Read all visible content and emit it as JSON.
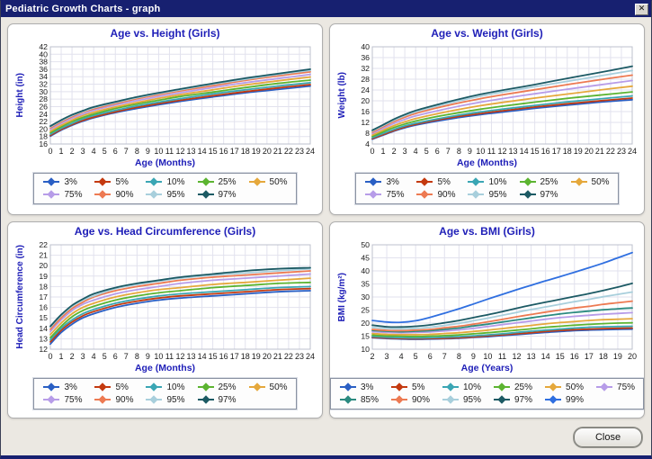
{
  "window": {
    "title": "Pediatric Growth Charts - graph",
    "close_glyph": "✕"
  },
  "footer": {
    "close_label": "Close"
  },
  "theme": {
    "title_bar_color": "#172070",
    "heading_color": "#2020b8",
    "gridline_color": "#e2e2ee",
    "plot_border_color": "#bcc0cc"
  },
  "chart_data": [
    {
      "id": "height",
      "type": "line",
      "title": "Age vs. Height (Girls)",
      "xlabel": "Age (Months)",
      "ylabel": "Height (in)",
      "xlim": [
        0,
        24
      ],
      "xstep": 1,
      "ylim": [
        16,
        42
      ],
      "ystep": 2,
      "grid": true,
      "legend_position": "bottom",
      "legend_per_row": 5,
      "x": [
        0,
        1,
        2,
        3,
        4,
        6,
        8,
        10,
        12,
        15,
        18,
        21,
        24
      ],
      "series": [
        {
          "name": "3%",
          "color": "#2a5fc4",
          "values": [
            18.1,
            19.7,
            21.0,
            22.1,
            23.0,
            24.4,
            25.5,
            26.5,
            27.4,
            28.6,
            29.7,
            30.6,
            31.5
          ]
        },
        {
          "name": "5%",
          "color": "#c43a10",
          "values": [
            18.3,
            19.9,
            21.2,
            22.3,
            23.2,
            24.6,
            25.8,
            26.8,
            27.7,
            28.9,
            30.0,
            31.0,
            31.9
          ]
        },
        {
          "name": "10%",
          "color": "#3ba6b4",
          "values": [
            18.6,
            20.2,
            21.5,
            22.7,
            23.6,
            25.0,
            26.2,
            27.2,
            28.1,
            29.4,
            30.5,
            31.5,
            32.4
          ]
        },
        {
          "name": "25%",
          "color": "#5cb431",
          "values": [
            19.0,
            20.6,
            22.0,
            23.1,
            24.0,
            25.5,
            26.7,
            27.7,
            28.7,
            29.9,
            31.1,
            32.2,
            33.1
          ]
        },
        {
          "name": "50%",
          "color": "#e5a83c",
          "values": [
            19.4,
            21.0,
            22.4,
            23.6,
            24.5,
            25.9,
            27.1,
            28.2,
            29.2,
            30.5,
            31.8,
            32.9,
            33.9
          ]
        },
        {
          "name": "75%",
          "color": "#b79ce8",
          "values": [
            19.9,
            21.5,
            22.9,
            24.0,
            25.0,
            26.4,
            27.6,
            28.7,
            29.7,
            31.1,
            32.4,
            33.5,
            34.6
          ]
        },
        {
          "name": "90%",
          "color": "#ed7a52",
          "values": [
            20.3,
            21.9,
            23.3,
            24.5,
            25.4,
            26.8,
            28.1,
            29.2,
            30.2,
            31.6,
            33.0,
            34.2,
            35.3
          ]
        },
        {
          "name": "95%",
          "color": "#a8cfdc",
          "values": [
            20.6,
            22.2,
            23.6,
            24.7,
            25.7,
            27.1,
            28.4,
            29.5,
            30.5,
            32.0,
            33.3,
            34.6,
            35.7
          ]
        },
        {
          "name": "97%",
          "color": "#1c5a64",
          "values": [
            20.8,
            22.4,
            23.8,
            24.9,
            25.9,
            27.3,
            28.6,
            29.7,
            30.7,
            32.2,
            33.6,
            34.8,
            36.0
          ]
        }
      ]
    },
    {
      "id": "weight",
      "type": "line",
      "title": "Age vs. Weight (Girls)",
      "xlabel": "Age (Months)",
      "ylabel": "Weight (lb)",
      "xlim": [
        0,
        24
      ],
      "xstep": 1,
      "ylim": [
        4,
        40
      ],
      "ystep": 4,
      "grid": true,
      "legend_position": "bottom",
      "legend_per_row": 5,
      "x": [
        0,
        1,
        2,
        3,
        4,
        6,
        8,
        10,
        12,
        15,
        18,
        21,
        24
      ],
      "series": [
        {
          "name": "3%",
          "color": "#2a5fc4",
          "values": [
            5.8,
            7.3,
            8.8,
            10.0,
            11.0,
            12.5,
            13.8,
            14.9,
            15.8,
            17.2,
            18.4,
            19.5,
            20.4
          ]
        },
        {
          "name": "5%",
          "color": "#c43a10",
          "values": [
            6.0,
            7.5,
            9.0,
            10.3,
            11.3,
            12.9,
            14.2,
            15.3,
            16.3,
            17.7,
            18.9,
            20.0,
            21.0
          ]
        },
        {
          "name": "10%",
          "color": "#3ba6b4",
          "values": [
            6.3,
            7.9,
            9.4,
            10.7,
            11.7,
            13.3,
            14.7,
            15.9,
            16.9,
            18.3,
            19.6,
            20.7,
            21.8
          ]
        },
        {
          "name": "25%",
          "color": "#5cb431",
          "values": [
            6.8,
            8.5,
            10.1,
            11.4,
            12.5,
            14.2,
            15.6,
            16.9,
            18.0,
            19.5,
            20.9,
            22.1,
            23.3
          ]
        },
        {
          "name": "50%",
          "color": "#e5a83c",
          "values": [
            7.3,
            9.1,
            10.8,
            12.2,
            13.4,
            15.2,
            16.8,
            18.2,
            19.4,
            21.0,
            22.5,
            24.0,
            25.4
          ]
        },
        {
          "name": "75%",
          "color": "#b79ce8",
          "values": [
            7.9,
            9.8,
            11.6,
            13.1,
            14.4,
            16.3,
            18.0,
            19.5,
            20.8,
            22.6,
            24.3,
            25.9,
            27.5
          ]
        },
        {
          "name": "90%",
          "color": "#ed7a52",
          "values": [
            8.4,
            10.4,
            12.3,
            13.9,
            15.3,
            17.4,
            19.2,
            20.8,
            22.2,
            24.1,
            26.0,
            27.8,
            29.5
          ]
        },
        {
          "name": "95%",
          "color": "#a8cfdc",
          "values": [
            8.8,
            10.8,
            12.8,
            14.5,
            15.9,
            18.1,
            20.0,
            21.7,
            23.2,
            25.2,
            27.2,
            29.2,
            31.2
          ]
        },
        {
          "name": "97%",
          "color": "#1c5a64",
          "values": [
            9.1,
            11.1,
            13.2,
            14.9,
            16.4,
            18.6,
            20.6,
            22.4,
            23.9,
            26.0,
            28.3,
            30.5,
            32.8
          ]
        }
      ]
    },
    {
      "id": "head-circumference",
      "type": "line",
      "title": "Age vs. Head Circumference (Girls)",
      "xlabel": "Age (Months)",
      "ylabel": "Head Circumference (in)",
      "xlim": [
        0,
        24
      ],
      "xstep": 1,
      "ylim": [
        12,
        22
      ],
      "ystep": 1,
      "grid": true,
      "legend_position": "bottom",
      "legend_per_row": 5,
      "x": [
        0,
        1,
        2,
        3,
        4,
        6,
        8,
        10,
        12,
        15,
        18,
        21,
        24
      ],
      "series": [
        {
          "name": "3%",
          "color": "#2a5fc4",
          "values": [
            12.5,
            13.6,
            14.4,
            15.0,
            15.4,
            16.0,
            16.4,
            16.7,
            16.9,
            17.1,
            17.3,
            17.5,
            17.6
          ]
        },
        {
          "name": "5%",
          "color": "#c43a10",
          "values": [
            12.7,
            13.8,
            14.6,
            15.2,
            15.6,
            16.2,
            16.6,
            16.9,
            17.1,
            17.3,
            17.5,
            17.7,
            17.8
          ]
        },
        {
          "name": "10%",
          "color": "#3ba6b4",
          "values": [
            12.9,
            14.0,
            14.8,
            15.4,
            15.8,
            16.4,
            16.8,
            17.1,
            17.3,
            17.5,
            17.7,
            17.9,
            18.0
          ]
        },
        {
          "name": "25%",
          "color": "#5cb431",
          "values": [
            13.1,
            14.2,
            15.1,
            15.7,
            16.1,
            16.7,
            17.1,
            17.4,
            17.6,
            17.9,
            18.1,
            18.3,
            18.4
          ]
        },
        {
          "name": "50%",
          "color": "#e5a83c",
          "values": [
            13.4,
            14.5,
            15.4,
            16.0,
            16.4,
            17.0,
            17.4,
            17.7,
            17.9,
            18.2,
            18.4,
            18.6,
            18.8
          ]
        },
        {
          "name": "75%",
          "color": "#b79ce8",
          "values": [
            13.7,
            14.8,
            15.7,
            16.3,
            16.7,
            17.3,
            17.7,
            18.0,
            18.3,
            18.6,
            18.8,
            19.0,
            19.2
          ]
        },
        {
          "name": "90%",
          "color": "#ed7a52",
          "values": [
            13.9,
            15.0,
            15.9,
            16.5,
            17.0,
            17.6,
            18.0,
            18.3,
            18.6,
            18.9,
            19.1,
            19.3,
            19.5
          ]
        },
        {
          "name": "95%",
          "color": "#a8cfdc",
          "values": [
            14.1,
            15.2,
            16.1,
            16.7,
            17.1,
            17.8,
            18.2,
            18.5,
            18.8,
            19.1,
            19.3,
            19.5,
            19.7
          ]
        },
        {
          "name": "97%",
          "color": "#1c5a64",
          "values": [
            14.2,
            15.3,
            16.2,
            16.8,
            17.3,
            17.9,
            18.3,
            18.6,
            18.9,
            19.2,
            19.5,
            19.7,
            19.8
          ]
        }
      ]
    },
    {
      "id": "bmi",
      "type": "line",
      "title": "Age vs. BMI (Girls)",
      "xlabel": "Age (Years)",
      "ylabel": "BMI (kg/m²)",
      "xlim": [
        2,
        20
      ],
      "xstep": 1,
      "ylim": [
        10,
        50
      ],
      "ystep": 5,
      "grid": true,
      "legend_position": "bottom",
      "legend_per_row": 6,
      "x": [
        2,
        3,
        4,
        5,
        6,
        7,
        8,
        9,
        10,
        11,
        12,
        13,
        14,
        15,
        16,
        17,
        18,
        19,
        20
      ],
      "series": [
        {
          "name": "3%",
          "color": "#2a5fc4",
          "values": [
            14.4,
            14.1,
            13.9,
            13.8,
            13.9,
            14.0,
            14.2,
            14.5,
            14.8,
            15.2,
            15.6,
            16.0,
            16.4,
            16.8,
            17.1,
            17.3,
            17.5,
            17.6,
            17.7
          ]
        },
        {
          "name": "5%",
          "color": "#c43a10",
          "values": [
            14.6,
            14.3,
            14.1,
            14.0,
            14.1,
            14.2,
            14.4,
            14.7,
            15.1,
            15.5,
            15.9,
            16.3,
            16.8,
            17.2,
            17.5,
            17.7,
            17.9,
            18.0,
            18.1
          ]
        },
        {
          "name": "10%",
          "color": "#3ba6b4",
          "values": [
            14.9,
            14.6,
            14.4,
            14.3,
            14.4,
            14.6,
            14.8,
            15.1,
            15.5,
            15.9,
            16.4,
            16.9,
            17.3,
            17.7,
            18.1,
            18.4,
            18.6,
            18.7,
            18.8
          ]
        },
        {
          "name": "25%",
          "color": "#5cb431",
          "values": [
            15.4,
            15.1,
            15.0,
            14.9,
            15.0,
            15.2,
            15.5,
            15.9,
            16.3,
            16.8,
            17.3,
            17.8,
            18.4,
            18.8,
            19.2,
            19.5,
            19.8,
            20.0,
            20.1
          ]
        },
        {
          "name": "50%",
          "color": "#e5a83c",
          "values": [
            16.0,
            15.7,
            15.6,
            15.6,
            15.7,
            16.0,
            16.3,
            16.8,
            17.3,
            17.9,
            18.5,
            19.1,
            19.7,
            20.2,
            20.6,
            21.0,
            21.3,
            21.5,
            21.7
          ]
        },
        {
          "name": "75%",
          "color": "#b79ce8",
          "values": [
            16.7,
            16.4,
            16.3,
            16.4,
            16.6,
            17.0,
            17.4,
            18.0,
            18.7,
            19.4,
            20.1,
            20.8,
            21.5,
            22.1,
            22.6,
            23.0,
            23.4,
            23.7,
            24.0
          ]
        },
        {
          "name": "85%",
          "color": "#2b8a80",
          "values": [
            17.2,
            16.9,
            16.7,
            16.9,
            17.1,
            17.6,
            18.1,
            18.9,
            19.6,
            20.4,
            21.2,
            22.0,
            22.8,
            23.5,
            24.1,
            24.6,
            25.1,
            25.5,
            25.8
          ]
        },
        {
          "name": "90%",
          "color": "#ed7a52",
          "values": [
            17.6,
            17.2,
            17.1,
            17.3,
            17.6,
            18.2,
            18.8,
            19.6,
            20.5,
            21.4,
            22.4,
            23.3,
            24.2,
            25.0,
            25.8,
            26.4,
            27.2,
            27.8,
            28.4
          ]
        },
        {
          "name": "95%",
          "color": "#a8cfdc",
          "values": [
            18.3,
            17.9,
            17.8,
            18.0,
            18.4,
            19.1,
            19.9,
            20.9,
            21.9,
            23.0,
            24.1,
            25.2,
            26.2,
            27.2,
            28.2,
            29.1,
            30.1,
            31.0,
            31.9
          ]
        },
        {
          "name": "97%",
          "color": "#1c5a64",
          "values": [
            19.2,
            18.6,
            18.5,
            18.8,
            19.3,
            20.1,
            21.0,
            22.1,
            23.2,
            24.4,
            25.7,
            26.9,
            28.0,
            29.1,
            30.2,
            31.3,
            32.5,
            33.8,
            35.2
          ]
        },
        {
          "name": "99%",
          "color": "#2f6fe0",
          "values": [
            21.0,
            20.4,
            20.3,
            20.9,
            22.2,
            23.8,
            25.5,
            27.3,
            29.2,
            31.0,
            32.8,
            34.5,
            36.2,
            37.8,
            39.5,
            41.2,
            43.0,
            45.0,
            47.0
          ]
        }
      ]
    }
  ]
}
